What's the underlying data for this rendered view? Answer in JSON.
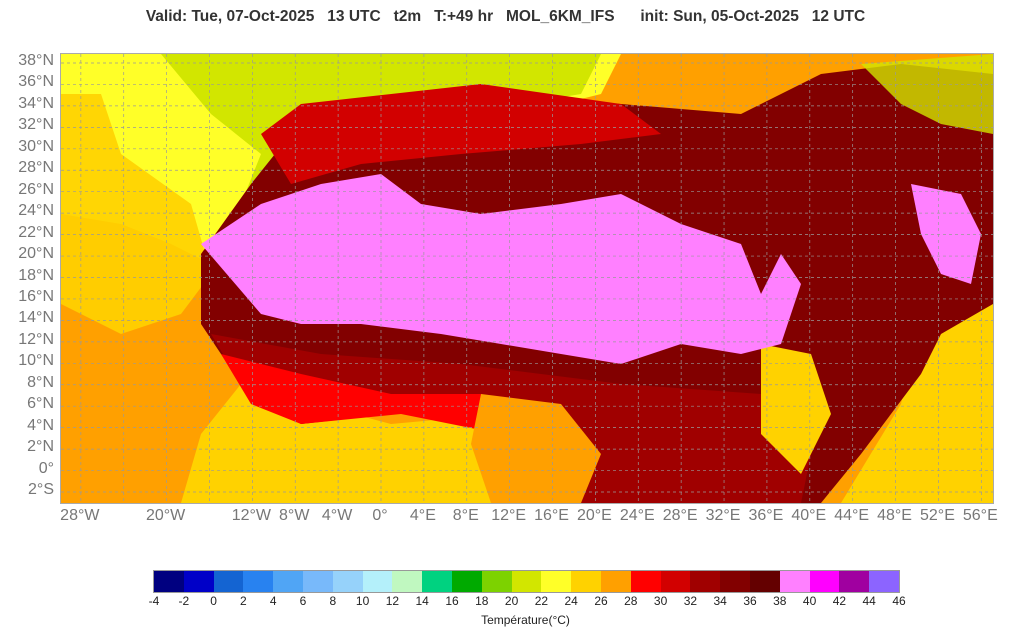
{
  "header": {
    "title": "Valid: Tue, 07-Oct-2025   13 UTC   t2m   T:+49 hr   MOL_6KM_IFS      init: Sun, 05-Oct-2025   12 UTC"
  },
  "map": {
    "lat_labels": [
      "38°N",
      "36°N",
      "34°N",
      "32°N",
      "30°N",
      "28°N",
      "26°N",
      "24°N",
      "22°N",
      "20°N",
      "18°N",
      "16°N",
      "14°N",
      "12°N",
      "10°N",
      "8°N",
      "6°N",
      "4°N",
      "2°N",
      "0°",
      "2°S"
    ],
    "lon_labels": [
      {
        "label": "28°W",
        "lon": -28
      },
      {
        "label": "20°W",
        "lon": -20
      },
      {
        "label": "12°W",
        "lon": -12
      },
      {
        "label": "8°W",
        "lon": -8
      },
      {
        "label": "4°W",
        "lon": -4
      },
      {
        "label": "0°",
        "lon": 0
      },
      {
        "label": "4°E",
        "lon": 4
      },
      {
        "label": "8°E",
        "lon": 8
      },
      {
        "label": "12°E",
        "lon": 12
      },
      {
        "label": "16°E",
        "lon": 16
      },
      {
        "label": "20°E",
        "lon": 20
      },
      {
        "label": "24°E",
        "lon": 24
      },
      {
        "label": "28°E",
        "lon": 28
      },
      {
        "label": "32°E",
        "lon": 32
      },
      {
        "label": "36°E",
        "lon": 36
      },
      {
        "label": "40°E",
        "lon": 40
      },
      {
        "label": "44°E",
        "lon": 44
      },
      {
        "label": "48°E",
        "lon": 48
      },
      {
        "label": "52°E",
        "lon": 52
      },
      {
        "label": "56°E",
        "lon": 56
      }
    ]
  },
  "colorbar": {
    "label": "Température(°C)",
    "ticks": [
      "-4",
      "-2",
      "0",
      "2",
      "4",
      "6",
      "8",
      "10",
      "12",
      "14",
      "16",
      "18",
      "20",
      "22",
      "24",
      "26",
      "28",
      "30",
      "32",
      "34",
      "36",
      "38",
      "40",
      "42",
      "44",
      "46"
    ],
    "colors": [
      "#000080",
      "#0000c8",
      "#1464d2",
      "#2882f0",
      "#50a5f5",
      "#78b9fa",
      "#96d2fa",
      "#b4f0fa",
      "#c0f8c0",
      "#00d280",
      "#00aa00",
      "#7dd200",
      "#d2e600",
      "#ffff28",
      "#ffd200",
      "#ffa000",
      "#ff0000",
      "#d20000",
      "#a00000",
      "#820000",
      "#640000",
      "#ff80ff",
      "#ff00ff",
      "#a000a0",
      "#8c64ff"
    ]
  }
}
